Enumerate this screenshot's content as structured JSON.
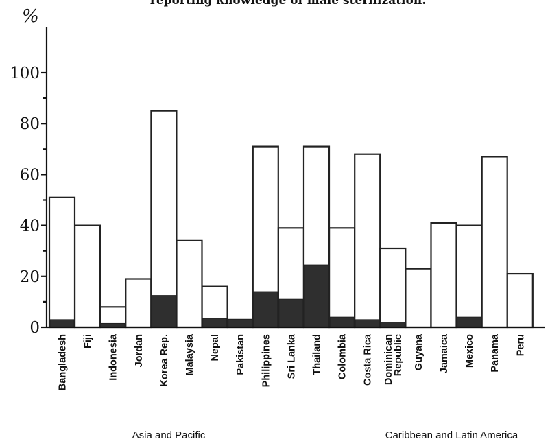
{
  "chart_data": {
    "type": "bar",
    "title": "reporting knowledge of male sterilization.",
    "ylabel": "%",
    "ylim": [
      0,
      100
    ],
    "yticks": [
      0,
      20,
      40,
      60,
      80,
      100
    ],
    "grid": false,
    "legend": "none",
    "categories": [
      "Bangladesh",
      "Fiji",
      "Indonesia",
      "Jordan",
      "Korea Rep.",
      "Malaysia",
      "Nepal",
      "Pakistan",
      "Philippines",
      "Sri Lanka",
      "Thailand",
      "Colombia",
      "Costa Rica",
      "Dominican Republic",
      "Guyana",
      "Jamaica",
      "Mexico",
      "Panama",
      "Peru"
    ],
    "category_labels": [
      [
        "Bangladesh"
      ],
      [
        "Fiji"
      ],
      [
        "Indonesia"
      ],
      [
        "Jordan"
      ],
      [
        "Korea Rep."
      ],
      [
        "Malaysia"
      ],
      [
        "Nepal"
      ],
      [
        "Pakistan"
      ],
      [
        "Philippines"
      ],
      [
        "Sri Lanka"
      ],
      [
        "Thailand"
      ],
      [
        "Colombia"
      ],
      [
        "Costa Rica"
      ],
      [
        "Dominican",
        "Republic"
      ],
      [
        "Guyana"
      ],
      [
        "Jamaica"
      ],
      [
        "Mexico"
      ],
      [
        "Panama"
      ],
      [
        "Peru"
      ]
    ],
    "series": [
      {
        "values": [
          51,
          40,
          8,
          19,
          85,
          34,
          16,
          3,
          71,
          39,
          71,
          39,
          68,
          31,
          23,
          41,
          40,
          67,
          21
        ]
      },
      {
        "values": [
          3,
          0,
          1.5,
          0,
          12.5,
          0,
          3.5,
          3,
          14,
          11,
          24.5,
          4,
          3,
          2,
          0,
          0,
          4,
          0,
          0
        ]
      }
    ],
    "groups": [
      {
        "label": "Asia and Pacific",
        "start": 0,
        "end": 10
      },
      {
        "label": "Caribbean and Latin America",
        "start": 11,
        "end": 18
      }
    ],
    "colors": {
      "total": "#ffffff",
      "male": "#2f2f2f",
      "outline": "#222222"
    }
  }
}
